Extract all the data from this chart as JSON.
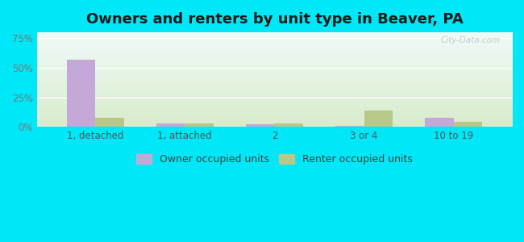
{
  "title": "Owners and renters by unit type in Beaver, PA",
  "categories": [
    "1, detached",
    "1, attached",
    "2",
    "3 or 4",
    "10 to 19"
  ],
  "owner_values": [
    57,
    3,
    2.5,
    1,
    8
  ],
  "renter_values": [
    8,
    3,
    3,
    14,
    4
  ],
  "owner_color": "#c4a8d8",
  "renter_color": "#b8c888",
  "yticks": [
    0,
    25,
    50,
    75
  ],
  "ylim": [
    0,
    80
  ],
  "bar_width": 0.32,
  "bg_outer": "#00e8f8",
  "title_fontsize": 13,
  "tick_fontsize": 8.5,
  "legend_fontsize": 9,
  "watermark_text": "City-Data.com",
  "watermark_color": "#c0cece",
  "grid_color": "#e0ece0",
  "grad_top": "#f0faf8",
  "grad_bottom": "#d8eccc"
}
